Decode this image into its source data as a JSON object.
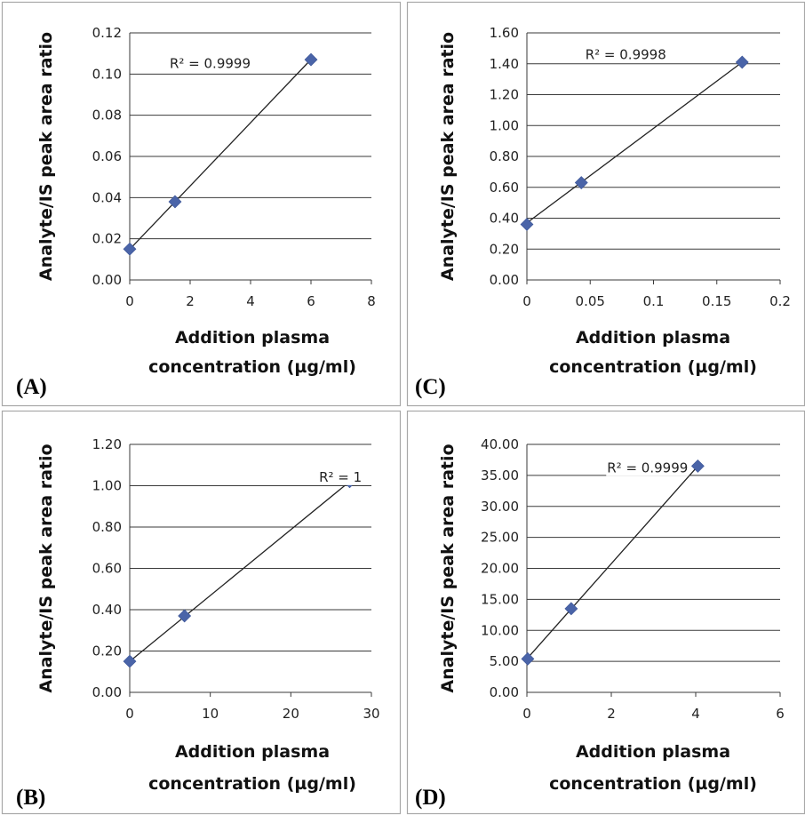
{
  "colors": {
    "marker": "#4a64a8",
    "trendline": "#222222",
    "gridline": "#3a3a3a",
    "panel_border": "#a8a8a8"
  },
  "chart_data": [
    {
      "type": "scatter",
      "panel_label": "(A)",
      "xlabel_line1": "Addition plasma",
      "xlabel_line2": "concentration (µg/ml)",
      "ylabel": "Analyte/IS peak area ratio",
      "xlim": [
        0,
        8
      ],
      "ylim": [
        0,
        0.12
      ],
      "x_ticks": [
        0,
        2,
        4,
        6,
        8
      ],
      "x_tick_labels": [
        "0",
        "2",
        "4",
        "6",
        "8"
      ],
      "y_ticks": [
        0,
        0.02,
        0.04,
        0.06,
        0.08,
        0.1,
        0.12
      ],
      "y_tick_labels": [
        "0.00",
        "0.02",
        "0.04",
        "0.06",
        "0.08",
        "0.10",
        "0.12"
      ],
      "grid": "horizontal",
      "series": [
        {
          "x": [
            0,
            1.5,
            6
          ],
          "y": [
            0.015,
            0.038,
            0.107
          ]
        }
      ],
      "trendline": {
        "x0": 0,
        "y0": 0.0149,
        "x1": 6,
        "y1": 0.1071
      },
      "r2_label": "R² = 0.9999",
      "r2_anchor_data": [
        4.0,
        0.103
      ]
    },
    {
      "type": "scatter",
      "panel_label": "(C)",
      "xlabel_line1": "Addition plasma",
      "xlabel_line2": "concentration (µg/ml)",
      "ylabel": "Analyte/IS peak area ratio",
      "xlim": [
        0,
        0.2
      ],
      "ylim": [
        0,
        1.6
      ],
      "x_ticks": [
        0,
        0.05,
        0.1,
        0.15,
        0.2
      ],
      "x_tick_labels": [
        "0",
        "0.05",
        "0.1",
        "0.15",
        "0.2"
      ],
      "y_ticks": [
        0,
        0.2,
        0.4,
        0.6,
        0.8,
        1.0,
        1.2,
        1.4,
        1.6
      ],
      "y_tick_labels": [
        "0.00",
        "0.20",
        "0.40",
        "0.60",
        "0.80",
        "1.00",
        "1.20",
        "1.40",
        "1.60"
      ],
      "grid": "horizontal",
      "series": [
        {
          "x": [
            0,
            0.043,
            0.17
          ],
          "y": [
            0.36,
            0.63,
            1.41
          ]
        }
      ],
      "trendline": {
        "x0": 0,
        "y0": 0.37,
        "x1": 0.17,
        "y1": 1.41
      },
      "r2_label": "R² = 0.9998",
      "r2_anchor_data": [
        0.11,
        1.43
      ]
    },
    {
      "type": "scatter",
      "panel_label": "(B)",
      "xlabel_line1": "Addition plasma",
      "xlabel_line2": "concentration (µg/ml)",
      "ylabel": "Analyte/IS peak area ratio",
      "xlim": [
        0,
        30
      ],
      "ylim": [
        0,
        1.2
      ],
      "x_ticks": [
        0,
        10,
        20,
        30
      ],
      "x_tick_labels": [
        "0",
        "10",
        "20",
        "30"
      ],
      "y_ticks": [
        0,
        0.2,
        0.4,
        0.6,
        0.8,
        1.0,
        1.2
      ],
      "y_tick_labels": [
        "0.00",
        "0.20",
        "0.40",
        "0.60",
        "0.80",
        "1.00",
        "1.20"
      ],
      "grid": "horizontal",
      "series": [
        {
          "x": [
            0,
            6.8,
            27.3
          ],
          "y": [
            0.15,
            0.37,
            1.02
          ]
        }
      ],
      "trendline": {
        "x0": 0,
        "y0": 0.15,
        "x1": 27.3,
        "y1": 1.02
      },
      "r2_label": "R² = 1",
      "r2_anchor_data": [
        23.5,
        1.02
      ]
    },
    {
      "type": "scatter",
      "panel_label": "(D)",
      "xlabel_line1": "Addition plasma",
      "xlabel_line2": "concentration (µg/ml)",
      "ylabel": "Analyte/IS peak area ratio",
      "xlim": [
        0,
        6
      ],
      "ylim": [
        0,
        40
      ],
      "x_ticks": [
        0,
        2,
        4,
        6
      ],
      "x_tick_labels": [
        "0",
        "2",
        "4",
        "6"
      ],
      "y_ticks": [
        0,
        5,
        10,
        15,
        20,
        25,
        30,
        35,
        40
      ],
      "y_tick_labels": [
        "0.00",
        "5.00",
        "10.00",
        "15.00",
        "20.00",
        "25.00",
        "30.00",
        "35.00",
        "40.00"
      ],
      "grid": "horizontal",
      "series": [
        {
          "x": [
            0.02,
            1.05,
            4.05
          ],
          "y": [
            5.4,
            13.5,
            36.5
          ]
        }
      ],
      "trendline": {
        "x0": 0,
        "y0": 5.4,
        "x1": 4.05,
        "y1": 36.5
      },
      "r2_label": "R² = 0.9999",
      "r2_anchor_data": [
        1.9,
        35.5
      ]
    }
  ]
}
